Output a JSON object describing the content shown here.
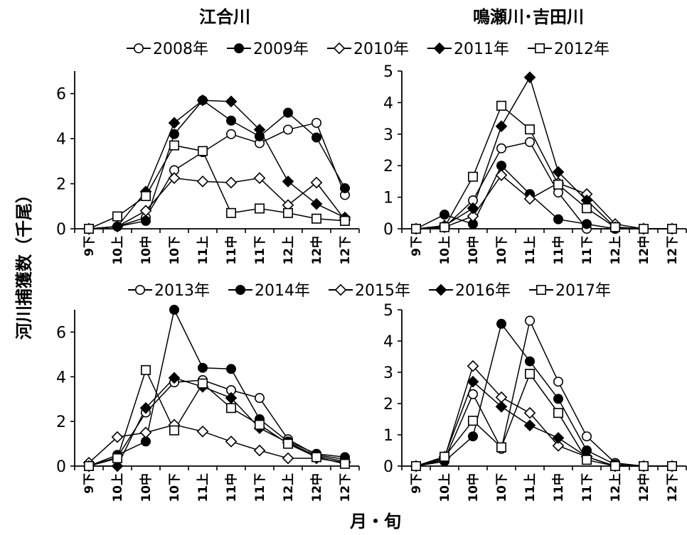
{
  "ylabel": "河川捕獲数（千尾）",
  "xlabel": "月・旬",
  "column_titles": [
    "江合川",
    "鳴瀬川･吉田川"
  ],
  "legend_top": [
    "2008年",
    "2009年",
    "2010年",
    "2011年",
    "2012年"
  ],
  "legend_bottom": [
    "2013年",
    "2014年",
    "2015年",
    "2016年",
    "2017年"
  ],
  "marker_styles": [
    "open-circle",
    "filled-circle",
    "open-diamond",
    "filled-diamond",
    "open-square"
  ],
  "chart_data": [
    {
      "type": "line",
      "title": "江合川",
      "categories": [
        "9下",
        "10上",
        "10中",
        "10下",
        "11上",
        "11中",
        "11下",
        "12上",
        "12中",
        "12下"
      ],
      "ylim": [
        0,
        7
      ],
      "yticks": [
        0,
        2,
        4,
        6
      ],
      "series": [
        {
          "name": "2008年",
          "marker": "open-circle",
          "values": [
            0,
            0.1,
            0.5,
            2.6,
            3.4,
            4.2,
            3.8,
            4.4,
            4.7,
            1.5
          ]
        },
        {
          "name": "2009年",
          "marker": "filled-circle",
          "values": [
            0,
            0.1,
            0.35,
            4.2,
            5.7,
            4.8,
            4.1,
            5.15,
            4.05,
            1.8
          ]
        },
        {
          "name": "2010年",
          "marker": "open-diamond",
          "values": [
            0,
            0.1,
            0.8,
            2.25,
            2.1,
            2.05,
            2.25,
            1.05,
            2.05,
            0.4
          ]
        },
        {
          "name": "2011年",
          "marker": "filled-diamond",
          "values": [
            0,
            0.1,
            1.65,
            4.7,
            5.7,
            5.65,
            4.4,
            2.1,
            1.1,
            0.5
          ]
        },
        {
          "name": "2012年",
          "marker": "open-square",
          "values": [
            0,
            0.55,
            1.45,
            3.7,
            3.45,
            0.7,
            0.9,
            0.7,
            0.45,
            0.35
          ]
        }
      ]
    },
    {
      "type": "line",
      "title": "鳴瀬川･吉田川",
      "categories": [
        "9下",
        "10上",
        "10中",
        "10下",
        "11上",
        "11中",
        "11下",
        "12上",
        "12中",
        "12下"
      ],
      "ylim": [
        0,
        5
      ],
      "yticks": [
        0,
        1,
        2,
        3,
        4,
        5
      ],
      "series": [
        {
          "name": "2008年",
          "marker": "open-circle",
          "values": [
            0,
            0.05,
            0.9,
            2.55,
            2.75,
            1.15,
            0,
            0,
            0,
            0
          ]
        },
        {
          "name": "2009年",
          "marker": "filled-circle",
          "values": [
            0,
            0.45,
            0.15,
            2.0,
            1.1,
            0.3,
            0.15,
            0,
            0,
            0
          ]
        },
        {
          "name": "2010年",
          "marker": "open-diamond",
          "values": [
            0,
            0.05,
            0.4,
            1.7,
            0.95,
            1.45,
            1.1,
            0.15,
            0,
            0
          ]
        },
        {
          "name": "2011年",
          "marker": "filled-diamond",
          "values": [
            0,
            0.1,
            0.65,
            3.25,
            4.8,
            1.8,
            0.9,
            0.05,
            0,
            0
          ]
        },
        {
          "name": "2012年",
          "marker": "open-square",
          "values": [
            0,
            0.05,
            1.65,
            3.9,
            3.15,
            1.4,
            0.65,
            0.05,
            0,
            0
          ]
        }
      ]
    },
    {
      "type": "line",
      "title": "",
      "categories": [
        "9下",
        "10上",
        "10中",
        "10下",
        "11上",
        "11中",
        "11下",
        "12上",
        "12中",
        "12下"
      ],
      "ylim": [
        0,
        7
      ],
      "yticks": [
        0,
        2,
        4,
        6
      ],
      "series": [
        {
          "name": "2013年",
          "marker": "open-circle",
          "values": [
            0,
            0.4,
            2.4,
            3.75,
            3.85,
            3.4,
            3.05,
            1.2,
            0.5,
            0.3
          ]
        },
        {
          "name": "2014年",
          "marker": "filled-circle",
          "values": [
            0,
            0.5,
            1.1,
            7.0,
            4.4,
            4.35,
            2.1,
            1.1,
            0.55,
            0.4
          ]
        },
        {
          "name": "2015年",
          "marker": "open-diamond",
          "values": [
            0.15,
            1.3,
            1.5,
            1.85,
            1.55,
            1.1,
            0.7,
            0.35,
            0.35,
            0.15
          ]
        },
        {
          "name": "2016年",
          "marker": "filled-diamond",
          "values": [
            0,
            0,
            2.6,
            3.95,
            3.55,
            3.05,
            1.7,
            1.05,
            0.45,
            0.2
          ]
        },
        {
          "name": "2017年",
          "marker": "open-square",
          "values": [
            0,
            0.35,
            4.3,
            1.6,
            3.7,
            2.6,
            1.85,
            1.0,
            0.4,
            0.1
          ]
        }
      ]
    },
    {
      "type": "line",
      "title": "",
      "categories": [
        "9下",
        "10上",
        "10中",
        "10下",
        "11上",
        "11中",
        "11下",
        "12上",
        "12中",
        "12下"
      ],
      "ylim": [
        0,
        5
      ],
      "yticks": [
        0,
        1,
        2,
        3,
        4,
        5
      ],
      "series": [
        {
          "name": "2013年",
          "marker": "open-circle",
          "values": [
            0,
            0.2,
            2.3,
            0.55,
            4.65,
            2.7,
            0.95,
            0.1,
            0,
            0
          ]
        },
        {
          "name": "2014年",
          "marker": "filled-circle",
          "values": [
            0,
            0.15,
            0.95,
            4.55,
            3.35,
            2.15,
            0.5,
            0.05,
            0,
            0
          ]
        },
        {
          "name": "2015年",
          "marker": "open-diamond",
          "values": [
            0,
            0.25,
            3.2,
            2.2,
            1.7,
            0.65,
            0.3,
            0,
            0,
            0
          ]
        },
        {
          "name": "2016年",
          "marker": "filled-diamond",
          "values": [
            0,
            0.3,
            2.7,
            1.9,
            1.3,
            0.9,
            0.3,
            0,
            0,
            0
          ]
        },
        {
          "name": "2017年",
          "marker": "open-square",
          "values": [
            0,
            0.3,
            1.45,
            0.6,
            2.95,
            1.7,
            0.2,
            0,
            0,
            0
          ]
        }
      ]
    }
  ]
}
